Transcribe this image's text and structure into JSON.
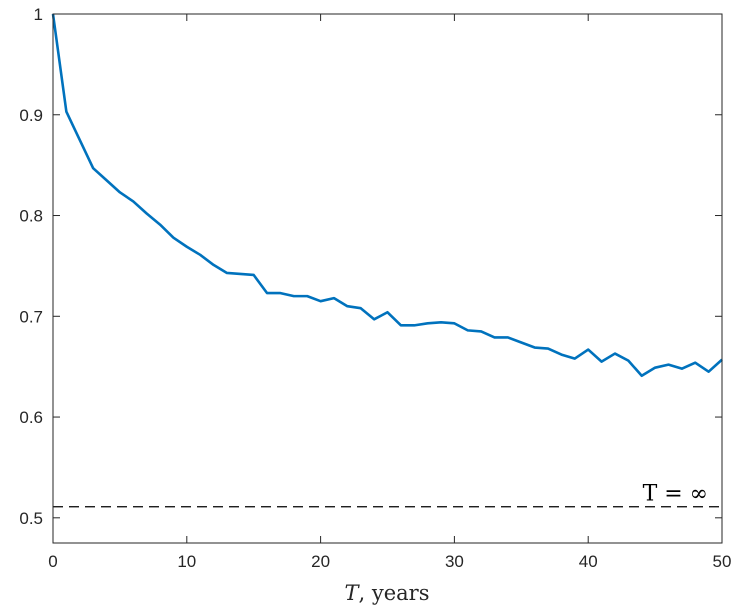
{
  "chart_data": {
    "type": "line",
    "xlabel_var": "T",
    "xlabel_rest": ", years",
    "ylabel": "",
    "title": "",
    "xlim": [
      0,
      50
    ],
    "ylim": [
      0.475,
      1.0
    ],
    "xticks": [
      0,
      10,
      20,
      30,
      40,
      50
    ],
    "yticks": [
      0.5,
      0.6,
      0.7,
      0.8,
      0.9,
      1.0
    ],
    "ytick_labels": [
      "0.5",
      "0.6",
      "0.7",
      "0.8",
      "0.9",
      "1"
    ],
    "xtick_labels": [
      "0",
      "10",
      "20",
      "30",
      "40",
      "50"
    ],
    "grid": false,
    "series": [
      {
        "color": "#0072BD",
        "x": [
          0,
          1,
          2,
          3,
          4,
          5,
          6,
          7,
          8,
          9,
          10,
          11,
          12,
          13,
          14,
          15,
          16,
          17,
          18,
          19,
          20,
          21,
          22,
          23,
          24,
          25,
          26,
          27,
          28,
          29,
          30,
          31,
          32,
          33,
          34,
          35,
          36,
          37,
          38,
          39,
          40,
          41,
          42,
          43,
          44,
          45,
          46,
          47,
          48,
          49,
          50
        ],
        "y": [
          1.0,
          0.903,
          0.875,
          0.847,
          0.835,
          0.823,
          0.814,
          0.802,
          0.791,
          0.778,
          0.769,
          0.761,
          0.751,
          0.743,
          0.742,
          0.741,
          0.723,
          0.723,
          0.72,
          0.72,
          0.715,
          0.718,
          0.71,
          0.708,
          0.697,
          0.704,
          0.691,
          0.691,
          0.693,
          0.694,
          0.693,
          0.686,
          0.685,
          0.679,
          0.679,
          0.674,
          0.669,
          0.668,
          0.662,
          0.658,
          0.667,
          0.655,
          0.663,
          0.656,
          0.641,
          0.649,
          0.652,
          0.648,
          0.654,
          0.645,
          0.657
        ]
      }
    ],
    "reference_line": {
      "y": 0.511,
      "style": "dashed",
      "color": "#000000",
      "label": "T = ∞"
    }
  }
}
